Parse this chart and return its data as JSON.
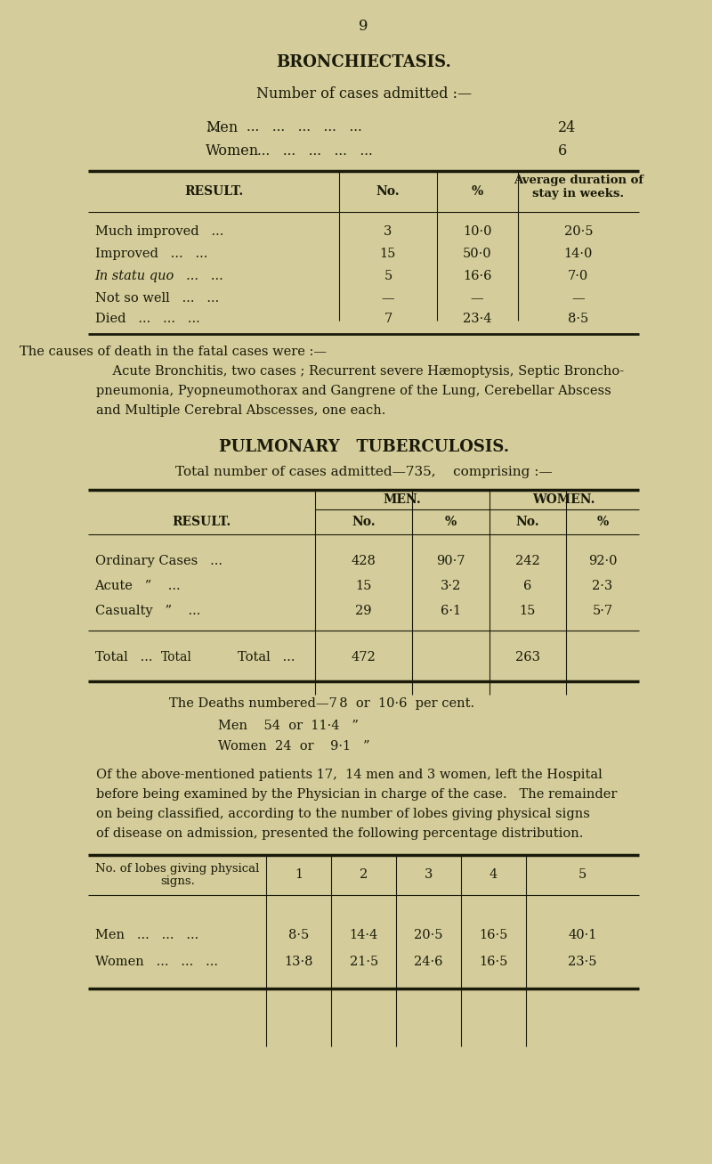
{
  "bg_color": "#d4cc9a",
  "text_color": "#1a1a0a",
  "page_number": "9",
  "section1_title": "BRONCHIECTASIS.",
  "section1_subtitle": "Number of cases admitted :—",
  "admitted_men": "24",
  "admitted_women": "6",
  "table1_headers": [
    "RESULT.",
    "No.",
    "%",
    "Average duration of\nstay in weeks."
  ],
  "table1_rows": [
    [
      "Much improved   ...",
      "3",
      "10·0",
      "20·5"
    ],
    [
      "Improved   ...   ...",
      "15",
      "50·0",
      "14·0"
    ],
    [
      "In statu quo   ...   ...",
      "5",
      "16·6",
      "7·0"
    ],
    [
      "Not so well   ...   ...",
      "—",
      "—",
      "—"
    ],
    [
      "Died   ...   ...   ...",
      "7",
      "23·4",
      "8·5"
    ]
  ],
  "death_causes_text": "The causes of death in the fatal cases were :—\n    Acute Bronchitis, two cases ; Recurrent severe Hæmoptysis, Septic Broncho-\npneumonia, Pyopneumothorax and Gangrene of the Lung, Cerebellar Abscess\nand Multiple Cerebral Abscesses, one each.",
  "section2_title": "PULMONARY   TUBERCULOSIS.",
  "section2_subtitle": "Total number of cases admitted—7⁠35,    comprising :—",
  "table2_col_headers": [
    "RESULT.",
    "MEN.",
    "",
    "WOMEN.",
    ""
  ],
  "table2_sub_headers": [
    "",
    "No.",
    "%",
    "No.",
    "%"
  ],
  "table2_rows": [
    [
      "Ordinary Cases   ...",
      "428",
      "90·7",
      "242",
      "92·0"
    ],
    [
      "Acute   ”    ...",
      "15",
      "3·2",
      "6",
      "2·3"
    ],
    [
      "Casualty   ”    ...",
      "29",
      "6·1",
      "15",
      "5·7"
    ]
  ],
  "table2_total_row": [
    "Total   ...",
    "472",
    "",
    "263",
    ""
  ],
  "deaths_text": "The Deaths numbered—7 8  or  10·6  per cent.\n            Men    54  or  11·4   ”\n            Women  24  or   9·1   ”",
  "paragraph_text": "Of the above-mentioned patients 17,  14 men and 3 women, left the Hospital\nbefore being examined by the Physician in charge of the case.   The remainder\non being classified, according to the number of lobes giving physical signs\nof disease on admission, presented the following percentage distribution.",
  "table3_header_left": "No. of lobes giving physical\nsigns.",
  "table3_col_nums": [
    "1",
    "2",
    "3",
    "4",
    "5"
  ],
  "table3_rows": [
    [
      "Men   ...   ...   ...",
      "8·5",
      "14·4",
      "20·5",
      "16·5",
      "40·1"
    ],
    [
      "Women   ...   ...   ...",
      "13·8",
      "21·5",
      "24·6",
      "16·5",
      "23·5"
    ]
  ]
}
